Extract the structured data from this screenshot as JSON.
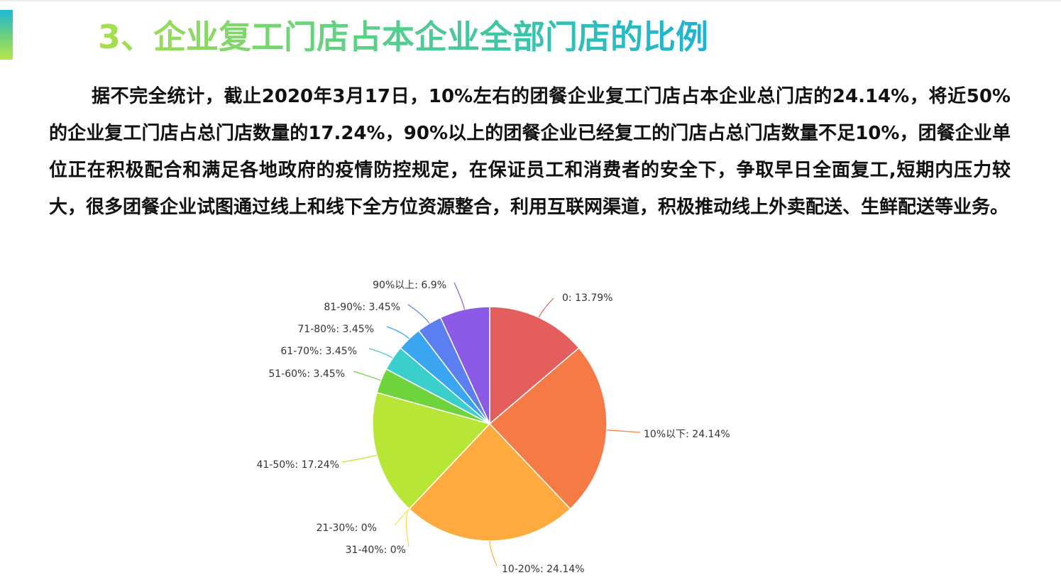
{
  "title": "3、企业复工门店占本企业全部门店的比例",
  "paragraph": "据不完全统计，截止2020年3月17日，10%左右的团餐企业复工门店占本企业总门店的24.14%，将近50%的企业复工门店占总门店数量的17.24%，90%以上的团餐企业已经复工的门店占总门店数量不足10%，团餐企业单位正在积极配合和满足各地政府的疫情防控规定，在保证员工和消费者的安全下，争取早日全面复工,短期内压力较大，很多团餐企业试图通过线上和线下全方位资源整合，利用互联网渠道，积极推动线上外卖配送、生鲜配送等业务。",
  "chart_data": {
    "type": "pie",
    "slices": [
      {
        "name": "0",
        "value": 13.79,
        "label": "0: 13.79%",
        "color": "#e55e5e"
      },
      {
        "name": "10%以下",
        "value": 24.14,
        "label": "10%以下: 24.14%",
        "color": "#f57a45"
      },
      {
        "name": "10-20%",
        "value": 24.14,
        "label": "10-20%: 24.14%",
        "color": "#ffaa3e"
      },
      {
        "name": "31-40%",
        "value": 0,
        "label": "31-40%: 0%",
        "color": "#ffd54a"
      },
      {
        "name": "21-30%",
        "value": 0,
        "label": "21-30%: 0%",
        "color": "#f2e94b"
      },
      {
        "name": "41-50%",
        "value": 17.24,
        "label": "41-50%: 17.24%",
        "color": "#b8e636"
      },
      {
        "name": "51-60%",
        "value": 3.45,
        "label": "51-60%: 3.45%",
        "color": "#6fd43c"
      },
      {
        "name": "61-70%",
        "value": 3.45,
        "label": "61-70%: 3.45%",
        "color": "#3acfcc"
      },
      {
        "name": "71-80%",
        "value": 3.45,
        "label": "71-80%: 3.45%",
        "color": "#3aa6f2"
      },
      {
        "name": "81-90%",
        "value": 3.45,
        "label": "81-90%: 3.45%",
        "color": "#5b7ef0"
      },
      {
        "name": "90%以上",
        "value": 6.9,
        "label": "90%以上: 6.9%",
        "color": "#8b5ae6"
      }
    ]
  }
}
